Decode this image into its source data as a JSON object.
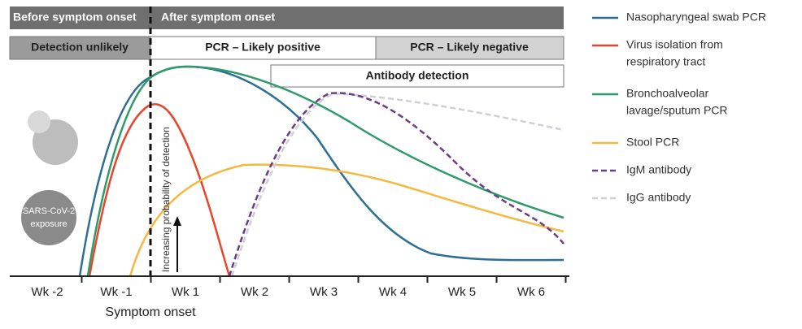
{
  "phases": {
    "before": "Before symptom onset",
    "after": "After symptom onset"
  },
  "stages": {
    "unlikely": "Detection unlikely",
    "pcr_positive": "PCR – Likely positive",
    "pcr_negative": "PCR – Likely negative",
    "antibody": "Antibody detection"
  },
  "x_labels": [
    "Wk -2",
    "Wk -1",
    "Wk 1",
    "Wk 2",
    "Wk 3",
    "Wk 4",
    "Wk 5",
    "Wk 6"
  ],
  "x_title": "Symptom onset",
  "y_label": "Increasing probability of detection",
  "exposure": [
    "SARS-CoV-2",
    "exposure"
  ],
  "legend": [
    {
      "lines": [
        "Nasopharyngeal swab PCR"
      ],
      "color": "#2e6f96",
      "dash": false
    },
    {
      "lines": [
        "Virus isolation from",
        "respiratory tract"
      ],
      "color": "#e8452a",
      "dash": false
    },
    {
      "lines": [
        "Bronchoalveolar",
        "lavage/sputum PCR"
      ],
      "color": "#2f9a6a",
      "dash": false
    },
    {
      "lines": [
        "Stool PCR"
      ],
      "color": "#f5b942",
      "dash": false
    },
    {
      "lines": [
        "IgM antibody"
      ],
      "color": "#6a3d8a",
      "dash": true
    },
    {
      "lines": [
        "IgG antibody"
      ],
      "color": "#cfcfd6",
      "dash": true
    }
  ]
}
